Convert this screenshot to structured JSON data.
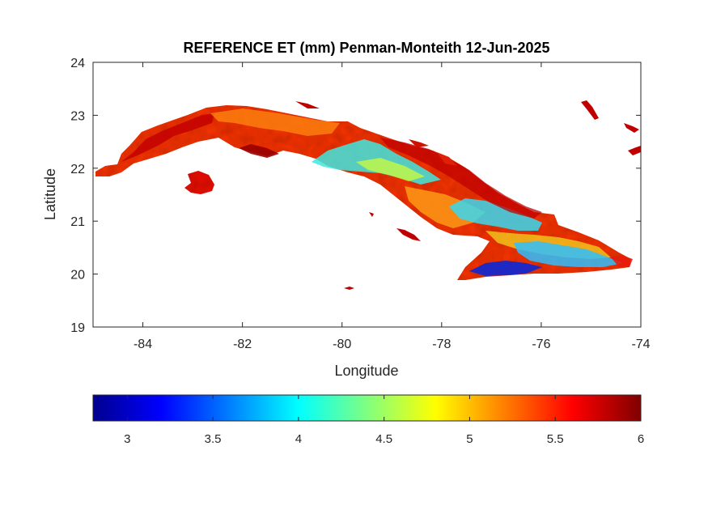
{
  "chart_data": {
    "type": "heatmap",
    "title": "REFERENCE ET (mm) Penman-Monteith 12-Jun-2025",
    "xlabel": "Longitude",
    "ylabel": "Latitude",
    "xlim": [
      -85,
      -74
    ],
    "ylim": [
      19,
      24
    ],
    "xticks": [
      -84,
      -82,
      -80,
      -78,
      -76,
      -74
    ],
    "yticks": [
      19,
      20,
      21,
      22,
      23,
      24
    ],
    "grid": false,
    "colormap": "jet",
    "colorbar": {
      "placement": "bottom",
      "range": [
        2.8,
        6
      ],
      "ticks": [
        3,
        3.5,
        4,
        4.5,
        5,
        5.5,
        6
      ]
    },
    "regions": [
      {
        "lon": [
          -84.6,
          -84.2
        ],
        "lat": [
          21.8,
          22.05
        ],
        "value": 5.7
      },
      {
        "lon": [
          -84.2,
          -83.3
        ],
        "lat": [
          22.0,
          22.6
        ],
        "value": 5.5
      },
      {
        "lon": [
          -83.3,
          -82.4
        ],
        "lat": [
          22.5,
          23.1
        ],
        "value": 5.4
      },
      {
        "lon": [
          -82.4,
          -81.6
        ],
        "lat": [
          22.3,
          23.15
        ],
        "value": 5.2
      },
      {
        "lon": [
          -81.6,
          -80.6
        ],
        "lat": [
          22.2,
          23.0
        ],
        "value": 5.1
      },
      {
        "lon": [
          -80.8,
          -79.6
        ],
        "lat": [
          21.9,
          22.5
        ],
        "value": 4.3
      },
      {
        "lon": [
          -79.6,
          -78.0
        ],
        "lat": [
          21.4,
          22.2
        ],
        "value": 4.8
      },
      {
        "lon": [
          -77.8,
          -76.6
        ],
        "lat": [
          20.9,
          21.5
        ],
        "value": 4.4
      },
      {
        "lon": [
          -76.6,
          -75.6
        ],
        "lat": [
          20.6,
          21.3
        ],
        "value": 4.9
      },
      {
        "lon": [
          -77.5,
          -76.2
        ],
        "lat": [
          20.0,
          20.5
        ],
        "value": 3.3
      },
      {
        "lon": [
          -76.2,
          -74.3
        ],
        "lat": [
          20.1,
          20.7
        ],
        "value": 4.2
      },
      {
        "lon": [
          -83.1,
          -82.7
        ],
        "lat": [
          21.5,
          21.9
        ],
        "value": 5.6
      }
    ]
  }
}
